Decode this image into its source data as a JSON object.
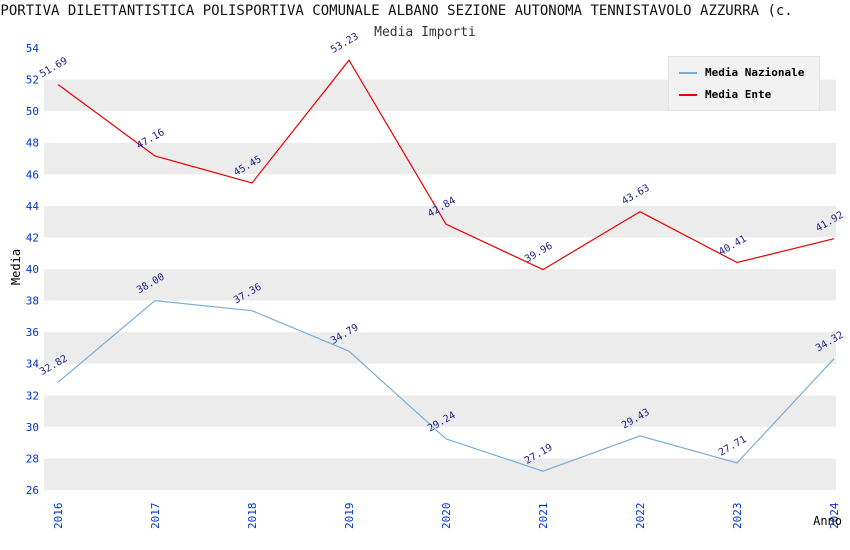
{
  "header": {
    "title": "SPORTIVA DILETTANTISTICA POLISPORTIVA COMUNALE ALBANO SEZIONE AUTONOMA TENNISTAVOLO AZZURRA (c.",
    "subtitle": "Media Importi"
  },
  "colors": {
    "band_gray": "#ececec",
    "band_white": "#ffffff",
    "tick_label": "#0033cc",
    "point_label": "#222288",
    "legend_bg": "#f2f2f2"
  },
  "chart_data": {
    "type": "line",
    "title": "Media Importi",
    "xlabel": "Anno",
    "ylabel": "Media",
    "ylim": [
      26,
      54
    ],
    "ytick_step": 2,
    "grid": "horizontal-alternating-bands",
    "legend_position": "top-right",
    "categories": [
      "2016",
      "2017",
      "2018",
      "2019",
      "2020",
      "2021",
      "2022",
      "2023",
      "2024"
    ],
    "series": [
      {
        "name": "Media Nazionale",
        "color": "#7aaed6",
        "values": [
          32.82,
          38.0,
          37.36,
          34.79,
          29.24,
          27.19,
          29.43,
          27.71,
          34.32
        ]
      },
      {
        "name": "Media Ente",
        "color": "#e60000",
        "values": [
          51.69,
          47.16,
          45.45,
          53.23,
          42.84,
          39.96,
          43.63,
          40.41,
          41.92
        ]
      }
    ]
  }
}
